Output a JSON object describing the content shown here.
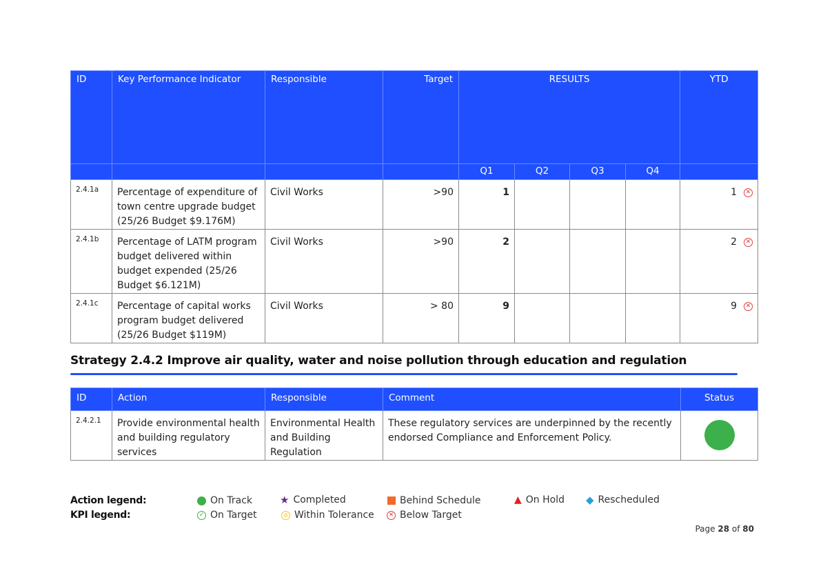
{
  "kpi_table": {
    "headers": {
      "id": "ID",
      "kpi": "Key Performance Indicator",
      "responsible": "Responsible",
      "target": "Target",
      "results": "RESULTS",
      "ytd": "YTD",
      "q1": "Q1",
      "q2": "Q2",
      "q3": "Q3",
      "q4": "Q4"
    },
    "rows": [
      {
        "id": "2.4.1a",
        "kpi": "Percentage of expenditure of town centre upgrade budget (25/26 Budget $9.176M)",
        "responsible": "Civil Works",
        "target": ">90",
        "q1": "1",
        "q2": "",
        "q3": "",
        "q4": "",
        "ytd": "1",
        "status": "below-target"
      },
      {
        "id": "2.4.1b",
        "kpi": "Percentage of LATM program budget delivered within budget expended (25/26 Budget $6.121M)",
        "responsible": "Civil Works",
        "target": ">90",
        "q1": "2",
        "q2": "",
        "q3": "",
        "q4": "",
        "ytd": "2",
        "status": "below-target"
      },
      {
        "id": "2.4.1c",
        "kpi": "Percentage of capital works program budget delivered (25/26 Budget $119M)",
        "responsible": "Civil Works",
        "target": "> 80",
        "q1": "9",
        "q2": "",
        "q3": "",
        "q4": "",
        "ytd": "9",
        "status": "below-target"
      }
    ]
  },
  "strategy_heading": "Strategy 2.4.2 Improve air quality, water and noise pollution through education and regulation",
  "action_table": {
    "headers": {
      "id": "ID",
      "action": "Action",
      "responsible": "Responsible",
      "comment": "Comment",
      "status": "Status"
    },
    "rows": [
      {
        "id": "2.4.2.1",
        "action": "Provide environmental health and building regulatory services",
        "responsible": "Environmental Health and Building Regulation",
        "comment": "These regulatory services are underpinned by the recently endorsed Compliance and Enforcement Policy.",
        "status": "on-track"
      }
    ]
  },
  "legend": {
    "action_label": "Action legend:",
    "kpi_label": "KPI legend:",
    "action_items": [
      {
        "icon": "green-circle-icon",
        "label": "On Track"
      },
      {
        "icon": "purple-star-icon",
        "label": "Completed"
      },
      {
        "icon": "orange-square-icon",
        "label": "Behind Schedule"
      },
      {
        "icon": "red-triangle-icon",
        "label": "On Hold"
      },
      {
        "icon": "blue-diamond-icon",
        "label": "Rescheduled"
      }
    ],
    "kpi_items": [
      {
        "icon": "green-check-circle-icon",
        "label": "On Target"
      },
      {
        "icon": "yellow-target-icon",
        "label": "Within Tolerance"
      },
      {
        "icon": "red-x-circle-icon",
        "label": "Below Target"
      }
    ]
  },
  "page": {
    "prefix": "Page",
    "current": "28",
    "of": "of",
    "total": "80"
  },
  "colors": {
    "header_blue": "#1f4fff",
    "on_track": "#3cb04a",
    "below_target": "#e23b3b",
    "completed": "#6a2a8a",
    "behind": "#f26a2e",
    "on_hold": "#e02020",
    "rescheduled": "#2a9fd8",
    "within_tolerance": "#f2c230"
  }
}
